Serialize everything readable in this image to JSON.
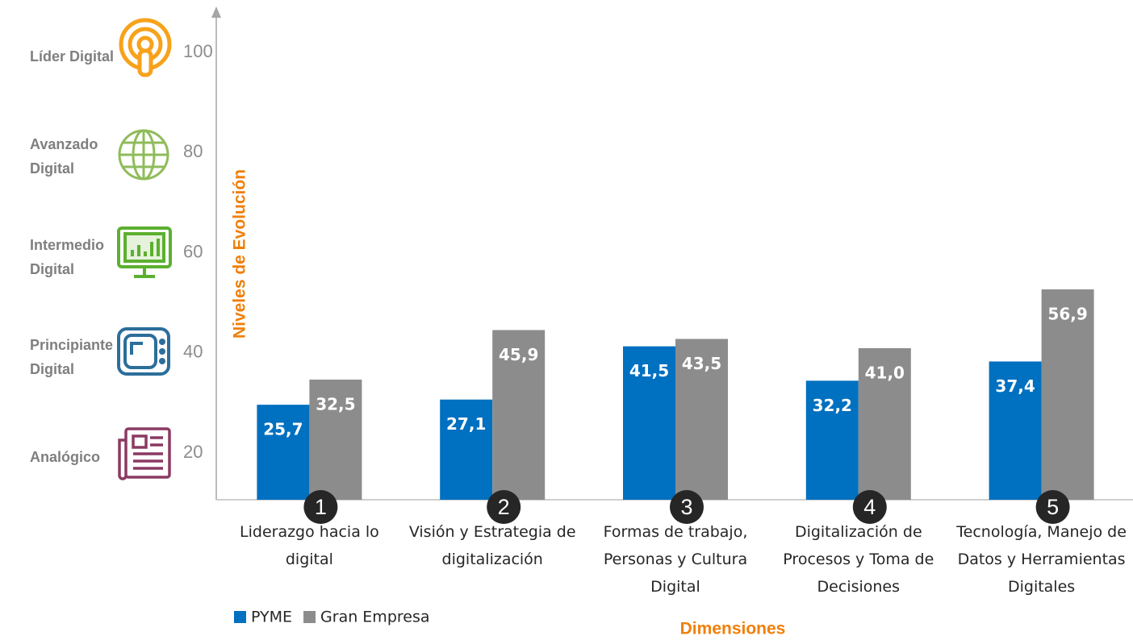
{
  "chart_data": {
    "type": "bar",
    "categories": [
      "Liderazgo hacia lo digital",
      "Visión y Estrategia de digitalización",
      "Formas de trabajo, Personas y Cultura Digital",
      "Digitalización de Procesos y Toma de Decisiones",
      "Tecnología, Manejo de Datos y Herramientas Digitales"
    ],
    "category_numbers": [
      "1",
      "2",
      "3",
      "4",
      "5"
    ],
    "series": [
      {
        "name": "PYME",
        "color": "#0070c0",
        "values": [
          25.7,
          27.1,
          41.5,
          32.2,
          37.4
        ],
        "value_labels": [
          "25,7",
          "27,1",
          "41,5",
          "32,2",
          "37,4"
        ]
      },
      {
        "name": "Gran Empresa",
        "color": "#8c8c8c",
        "values": [
          32.5,
          45.9,
          43.5,
          41.0,
          56.9
        ],
        "value_labels": [
          "32,5",
          "45,9",
          "43,5",
          "41,0",
          "56,9"
        ]
      }
    ],
    "ylim": [
      0,
      133
    ],
    "y_label": "Niveles de Evolución",
    "x_label": "Dimensiones",
    "level_names": [
      "Analógico",
      "Principiante Digital",
      "Intermedio Digital",
      "Avanzado Digital",
      "Líder Digital"
    ],
    "level_values": [
      20,
      40,
      60,
      80,
      100
    ],
    "legend": "bottom-left"
  }
}
